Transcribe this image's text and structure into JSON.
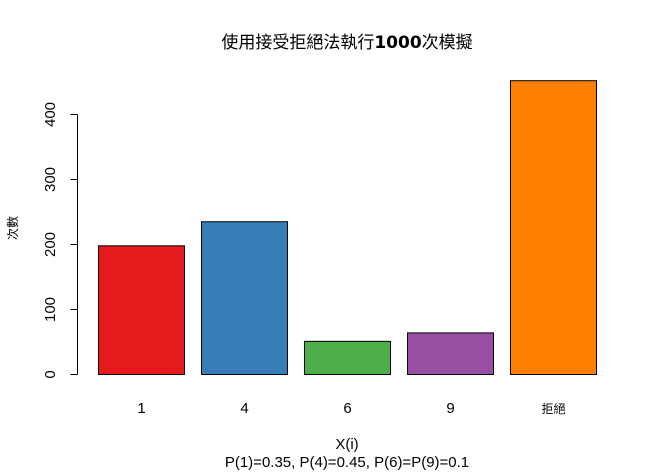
{
  "chart_data": {
    "type": "bar",
    "title": {
      "prefix": "使用接受拒絕法執行",
      "number": "1000",
      "suffix": "次模擬"
    },
    "xlabel": "X(i)",
    "subtitle": "P(1)=0.35, P(4)=0.45, P(6)=P(9)=0.1",
    "ylabel": "次數",
    "categories": [
      "1",
      "4",
      "6",
      "9",
      "拒絕"
    ],
    "values": [
      198,
      235,
      51,
      64,
      452
    ],
    "colors": [
      "#E41A1C",
      "#377EB8",
      "#4DAF4A",
      "#984EA3",
      "#FF7F00"
    ],
    "yticks": [
      0,
      100,
      200,
      300,
      400
    ],
    "ylim": [
      0,
      452
    ],
    "grid": false,
    "legend": "none"
  }
}
